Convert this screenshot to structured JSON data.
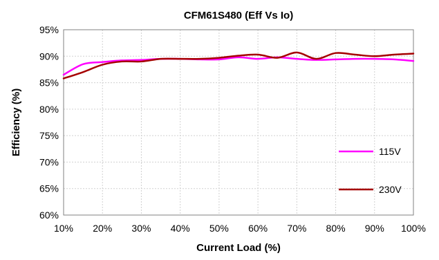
{
  "chart_data": {
    "type": "line",
    "title": "CFM61S480 (Eff Vs Io)",
    "xlabel": "Current Load (%)",
    "ylabel": "Efficiency (%)",
    "xlim": [
      10,
      100
    ],
    "ylim": [
      60,
      95
    ],
    "x_ticks": [
      10,
      20,
      30,
      40,
      50,
      60,
      70,
      80,
      90,
      100
    ],
    "x_tick_labels": [
      "10%",
      "20%",
      "30%",
      "40%",
      "50%",
      "60%",
      "70%",
      "80%",
      "90%",
      "100%"
    ],
    "y_ticks": [
      60,
      65,
      70,
      75,
      80,
      85,
      90,
      95
    ],
    "y_tick_labels": [
      "60%",
      "65%",
      "70%",
      "75%",
      "80%",
      "85%",
      "90%",
      "95%"
    ],
    "grid": true,
    "legend_position": "right",
    "series": [
      {
        "name": "115V",
        "color": "#ff00ff",
        "x": [
          10,
          15,
          20,
          25,
          30,
          35,
          40,
          45,
          50,
          55,
          60,
          65,
          70,
          75,
          80,
          85,
          90,
          95,
          100
        ],
        "y": [
          86.5,
          88.5,
          88.9,
          89.2,
          89.3,
          89.5,
          89.5,
          89.4,
          89.4,
          89.8,
          89.5,
          89.8,
          89.5,
          89.3,
          89.4,
          89.5,
          89.5,
          89.4,
          89.1
        ]
      },
      {
        "name": "230V",
        "color": "#a50000",
        "x": [
          10,
          15,
          20,
          25,
          30,
          35,
          40,
          45,
          50,
          55,
          60,
          65,
          70,
          75,
          80,
          85,
          90,
          95,
          100
        ],
        "y": [
          85.8,
          87.0,
          88.4,
          89.0,
          89.0,
          89.5,
          89.5,
          89.5,
          89.7,
          90.1,
          90.3,
          89.7,
          90.7,
          89.5,
          90.6,
          90.3,
          90.0,
          90.3,
          90.5
        ]
      }
    ]
  }
}
